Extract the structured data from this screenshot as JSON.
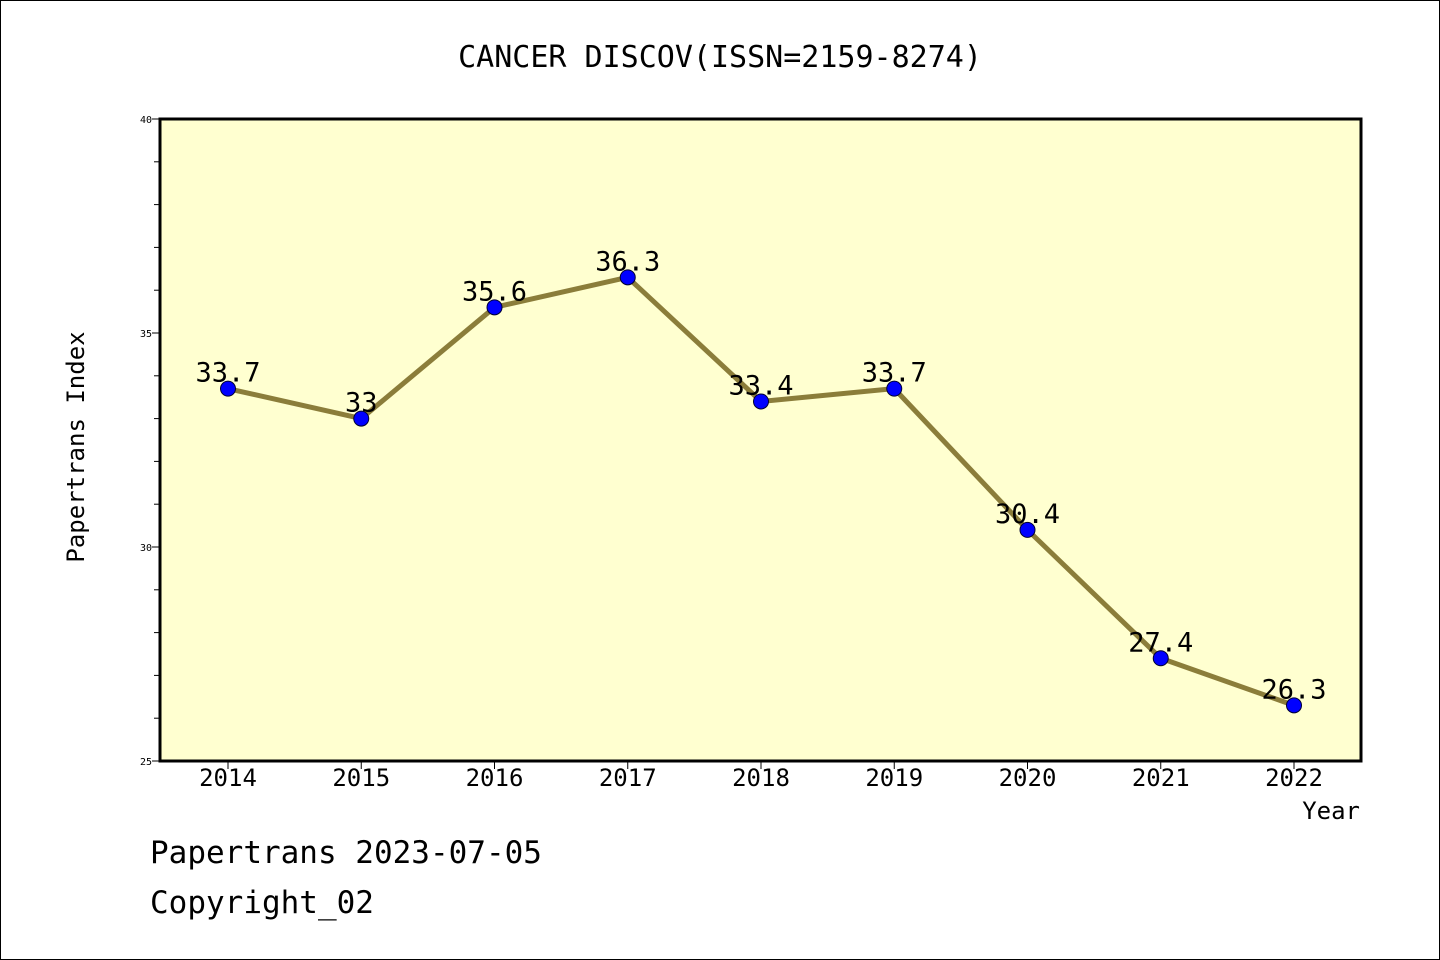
{
  "chart_data": {
    "type": "line",
    "title": "CANCER DISCOV(ISSN=2159-8274)",
    "xlabel": "Year",
    "ylabel": "Papertrans Index",
    "categories": [
      "2014",
      "2015",
      "2016",
      "2017",
      "2018",
      "2019",
      "2020",
      "2021",
      "2022"
    ],
    "series": [
      {
        "values": [
          33.7,
          33,
          35.6,
          36.3,
          33.4,
          33.7,
          30.4,
          27.4,
          26.3
        ],
        "labels": [
          "33.7",
          "33",
          "35.6",
          "36.3",
          "33.4",
          "33.7",
          "30.4",
          "27.4",
          "26.3"
        ]
      }
    ],
    "ylim": [
      25,
      40
    ],
    "yticks": [
      "25",
      "30",
      "35",
      "40"
    ],
    "grid": false,
    "legend": "none",
    "colors": {
      "plot_background": "#ffffd0",
      "line": "#8b7d3a",
      "marker": "#0000ff"
    }
  },
  "footer": {
    "line1": "Papertrans 2023-07-05",
    "line2": "Copyright_02"
  }
}
